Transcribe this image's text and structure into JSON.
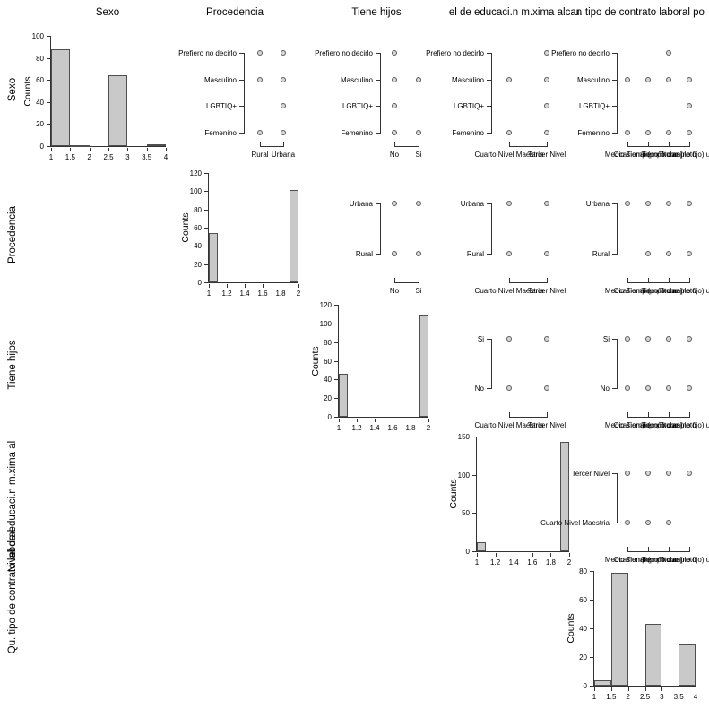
{
  "chart_data": {
    "type": "scatter-matrix",
    "description": "pairs plot: diagonal histograms of category counts, upper triangle category-vs-category scatter points",
    "grid": "off",
    "colors": {
      "bar_fill": "#c9c9c9",
      "bar_border": "#4f4f4f",
      "point_fill": "#d6d6d6",
      "point_border": "#5c5c5c",
      "background": "#ffffff"
    },
    "col_titles": [
      "Sexo",
      "Procedencia",
      "Tiene hijos",
      "el de educaci.n m.xima alcan",
      "u. tipo de contrato laboral po"
    ],
    "row_labels": [
      "Sexo",
      "Procedencia",
      "Tiene hijos",
      "Nivel de educaci.n m.xima al",
      "Qu. tipo de contrato laboral"
    ],
    "ylabel": "Counts",
    "diagonal_histograms": [
      {
        "var": "Sexo",
        "ylabel": "Counts",
        "ymax": 100,
        "yticks": [
          0,
          20,
          40,
          60,
          80,
          100
        ],
        "xmin": 1,
        "xmax": 4,
        "xticks": [
          "1",
          "1.5",
          "2",
          "2.5",
          "3",
          "3.5",
          "4"
        ],
        "bars": [
          {
            "from": 1,
            "to": 1.5,
            "count": 88
          },
          {
            "from": 1.5,
            "to": 2,
            "count": 1
          },
          {
            "from": 2.5,
            "to": 3,
            "count": 64
          },
          {
            "from": 3.5,
            "to": 4,
            "count": 2
          }
        ]
      },
      {
        "var": "Procedencia",
        "ylabel": "Counts",
        "ymax": 120,
        "yticks": [
          0,
          20,
          40,
          60,
          80,
          100,
          120
        ],
        "xmin": 1,
        "xmax": 2,
        "xticks": [
          "1",
          "1.2",
          "1.4",
          "1.6",
          "1.8",
          "2"
        ],
        "bars": [
          {
            "from": 1,
            "to": 1.1,
            "count": 54
          },
          {
            "from": 1.9,
            "to": 2,
            "count": 101
          }
        ]
      },
      {
        "var": "Tiene hijos",
        "ylabel": "Counts",
        "ymax": 120,
        "yticks": [
          0,
          20,
          40,
          60,
          80,
          100,
          120
        ],
        "xmin": 1,
        "xmax": 2,
        "xticks": [
          "1",
          "1.2",
          "1.4",
          "1.6",
          "1.8",
          "2"
        ],
        "bars": [
          {
            "from": 1,
            "to": 1.1,
            "count": 46
          },
          {
            "from": 1.9,
            "to": 2,
            "count": 109
          }
        ]
      },
      {
        "var": "Nivel de educaci.n",
        "ylabel": "Counts",
        "ymax": 150,
        "yticks": [
          0,
          50,
          100,
          150
        ],
        "xmin": 1,
        "xmax": 2,
        "xticks": [
          "1",
          "1.2",
          "1.4",
          "1.6",
          "1.8",
          "2"
        ],
        "bars": [
          {
            "from": 1,
            "to": 1.1,
            "count": 12
          },
          {
            "from": 1.9,
            "to": 2,
            "count": 143
          }
        ]
      },
      {
        "var": "Tipo de contrato laboral",
        "ylabel": "Counts",
        "ymax": 80,
        "yticks": [
          0,
          20,
          40,
          60,
          80
        ],
        "xmin": 1,
        "xmax": 4,
        "xticks": [
          "1",
          "1.5",
          "2",
          "2.5",
          "3",
          "3.5",
          "4"
        ],
        "bars": [
          {
            "from": 1,
            "to": 1.5,
            "count": 4
          },
          {
            "from": 1.5,
            "to": 2,
            "count": 79
          },
          {
            "from": 2.5,
            "to": 3,
            "count": 43
          },
          {
            "from": 3.5,
            "to": 4,
            "count": 29
          }
        ]
      }
    ],
    "upper_scatter_panels": [
      {
        "grid_pos": [
          1,
          2
        ],
        "y_var": "Sexo",
        "x_var": "Procedencia",
        "y_categories_top_to_bottom": [
          "Prefiero no decirlo",
          "Masculino",
          "LGBTIQ+",
          "Femenino"
        ],
        "x_categories": [
          "Rural",
          "Urbana"
        ],
        "points": [
          [
            0,
            0
          ],
          [
            0,
            1
          ],
          [
            1,
            0
          ],
          [
            1,
            1
          ],
          [
            2,
            1
          ],
          [
            3,
            0
          ],
          [
            3,
            1
          ]
        ]
      },
      {
        "grid_pos": [
          1,
          3
        ],
        "y_var": "Sexo",
        "x_var": "Tiene hijos",
        "y_categories_top_to_bottom": [
          "Prefiero no decirlo",
          "Masculino",
          "LGBTIQ+",
          "Femenino"
        ],
        "x_categories": [
          "No",
          "Si"
        ],
        "points": [
          [
            0,
            0
          ],
          [
            1,
            0
          ],
          [
            1,
            1
          ],
          [
            2,
            0
          ],
          [
            3,
            0
          ],
          [
            3,
            1
          ]
        ]
      },
      {
        "grid_pos": [
          1,
          4
        ],
        "y_var": "Sexo",
        "x_var": "Nivel de educaci.n",
        "y_categories_top_to_bottom": [
          "Prefiero no decirlo",
          "Masculino",
          "LGBTIQ+",
          "Femenino"
        ],
        "x_categories": [
          "Cuarto Nivel Maestria",
          "Tercer Nivel"
        ],
        "points": [
          [
            0,
            1
          ],
          [
            1,
            0
          ],
          [
            1,
            1
          ],
          [
            2,
            1
          ],
          [
            3,
            0
          ],
          [
            3,
            1
          ]
        ]
      },
      {
        "grid_pos": [
          1,
          5
        ],
        "y_var": "Sexo",
        "x_var": "Tipo de contrato laboral",
        "y_categories_top_to_bottom": [
          "Prefiero no decirlo",
          "Masculino",
          "LGBTIQ+",
          "Femenino"
        ],
        "x_categories": [
          "Medio Tiempo",
          "Ocasional (por horas)",
          "Tiempo completo",
          "Titular (no fijo) u op"
        ],
        "points": [
          [
            0,
            2
          ],
          [
            1,
            0
          ],
          [
            1,
            1
          ],
          [
            1,
            2
          ],
          [
            1,
            3
          ],
          [
            2,
            3
          ],
          [
            3,
            0
          ],
          [
            3,
            1
          ],
          [
            3,
            2
          ],
          [
            3,
            3
          ]
        ]
      },
      {
        "grid_pos": [
          2,
          3
        ],
        "y_var": "Procedencia",
        "x_var": "Tiene hijos",
        "y_categories_top_to_bottom": [
          "Urbana",
          "Rural"
        ],
        "x_categories": [
          "No",
          "Si"
        ],
        "points": [
          [
            0,
            0
          ],
          [
            0,
            1
          ],
          [
            1,
            0
          ],
          [
            1,
            1
          ]
        ]
      },
      {
        "grid_pos": [
          2,
          4
        ],
        "y_var": "Procedencia",
        "x_var": "Nivel de educaci.n",
        "y_categories_top_to_bottom": [
          "Urbana",
          "Rural"
        ],
        "x_categories": [
          "Cuarto Nivel Maestria",
          "Tercer Nivel"
        ],
        "points": [
          [
            0,
            0
          ],
          [
            0,
            1
          ],
          [
            1,
            0
          ],
          [
            1,
            1
          ]
        ]
      },
      {
        "grid_pos": [
          2,
          5
        ],
        "y_var": "Procedencia",
        "x_var": "Tipo de contrato laboral",
        "y_categories_top_to_bottom": [
          "Urbana",
          "Rural"
        ],
        "x_categories": [
          "Medio Tiempo",
          "Ocasional (por horas)",
          "Tiempo completo",
          "Titular (no fijo) u op"
        ],
        "points": [
          [
            0,
            0
          ],
          [
            0,
            1
          ],
          [
            0,
            2
          ],
          [
            0,
            3
          ],
          [
            1,
            1
          ],
          [
            1,
            2
          ],
          [
            1,
            3
          ]
        ]
      },
      {
        "grid_pos": [
          3,
          4
        ],
        "y_var": "Tiene hijos",
        "x_var": "Nivel de educaci.n",
        "y_categories_top_to_bottom": [
          "Si",
          "No"
        ],
        "x_categories": [
          "Cuarto Nivel Maestria",
          "Tercer Nivel"
        ],
        "points": [
          [
            0,
            0
          ],
          [
            0,
            1
          ],
          [
            1,
            0
          ],
          [
            1,
            1
          ]
        ]
      },
      {
        "grid_pos": [
          3,
          5
        ],
        "y_var": "Tiene hijos",
        "x_var": "Tipo de contrato laboral",
        "y_categories_top_to_bottom": [
          "Si",
          "No"
        ],
        "x_categories": [
          "Medio Tiempo",
          "Ocasional (por horas)",
          "Tiempo completo",
          "Titular (no fijo) u op"
        ],
        "points": [
          [
            0,
            0
          ],
          [
            0,
            1
          ],
          [
            0,
            2
          ],
          [
            0,
            3
          ],
          [
            1,
            0
          ],
          [
            1,
            1
          ],
          [
            1,
            2
          ],
          [
            1,
            3
          ]
        ]
      },
      {
        "grid_pos": [
          4,
          5
        ],
        "y_var": "Nivel de educaci.n",
        "x_var": "Tipo de contrato laboral",
        "y_categories_top_to_bottom": [
          "Tercer Nivel",
          "Cuarto Nivel Maestria"
        ],
        "x_categories": [
          "Medio Tiempo",
          "Ocasional (por horas)",
          "Tiempo completo",
          "Titular (no fijo) u op"
        ],
        "points": [
          [
            0,
            0
          ],
          [
            0,
            1
          ],
          [
            0,
            2
          ],
          [
            0,
            3
          ],
          [
            1,
            0
          ],
          [
            1,
            1
          ],
          [
            1,
            2
          ]
        ]
      }
    ]
  }
}
